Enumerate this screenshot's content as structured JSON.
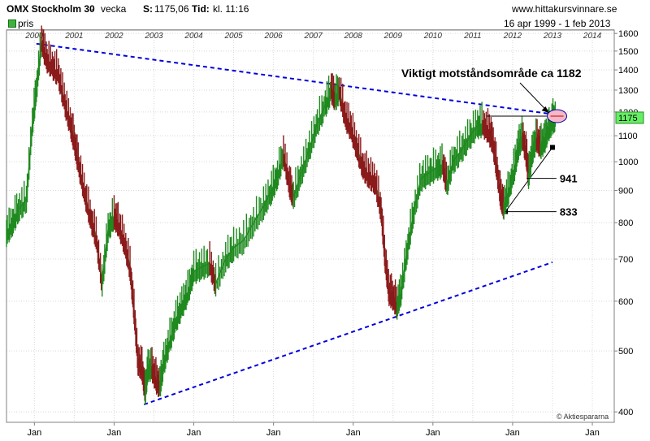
{
  "header": {
    "instrument": "OMX Stockholm 30",
    "separator": "-",
    "period": "vecka",
    "last_label": "S:",
    "last_value": "1175,06",
    "time_label": "Tid:",
    "time_value": "kl. 11:16",
    "site": "www.hittakursvinnare.se"
  },
  "subheader": {
    "legend": "pris",
    "date_range": "16 apr 1999 - 1 feb 2013"
  },
  "copyright": "© Aktiespararna",
  "colors": {
    "up": "#1f8a1f",
    "down": "#8b1a1a",
    "trendline": "#0000dd",
    "highlight": "#f4b8c8",
    "last_badge": "#66ee66"
  },
  "chart_data": {
    "type": "line",
    "scale": "log",
    "ylim": [
      385,
      1620
    ],
    "xlim": [
      1999.3,
      2014.55
    ],
    "yticks": [
      400,
      500,
      600,
      700,
      800,
      900,
      1000,
      1100,
      1200,
      1300,
      1400,
      1500,
      1600
    ],
    "year_labels": [
      "2000",
      "2001",
      "2002",
      "2003",
      "2004",
      "2005",
      "2006",
      "2007",
      "2008",
      "2009",
      "2010",
      "2011",
      "2012",
      "2013",
      "2014"
    ],
    "bottom_labels": [
      "Jan",
      "Jan",
      "Jan",
      "Jan",
      "Jan",
      "Jan",
      "Jan",
      "Jan"
    ],
    "last_value_label": "1175",
    "series": [
      {
        "values": [
          [
            1999.3,
            770
          ],
          [
            1999.45,
            800
          ],
          [
            1999.6,
            840
          ],
          [
            1999.8,
            870
          ],
          [
            1999.95,
            1150
          ],
          [
            2000.05,
            1300
          ],
          [
            2000.18,
            1560
          ],
          [
            2000.3,
            1460
          ],
          [
            2000.45,
            1420
          ],
          [
            2000.6,
            1380
          ],
          [
            2000.75,
            1250
          ],
          [
            2000.9,
            1150
          ],
          [
            2001.0,
            1080
          ],
          [
            2001.1,
            1000
          ],
          [
            2001.25,
            900
          ],
          [
            2001.4,
            820
          ],
          [
            2001.55,
            760
          ],
          [
            2001.7,
            640
          ],
          [
            2001.85,
            780
          ],
          [
            2002.0,
            820
          ],
          [
            2002.1,
            800
          ],
          [
            2002.25,
            750
          ],
          [
            2002.4,
            680
          ],
          [
            2002.5,
            580
          ],
          [
            2002.6,
            480
          ],
          [
            2002.7,
            470
          ],
          [
            2002.78,
            430
          ],
          [
            2002.85,
            470
          ],
          [
            2002.95,
            470
          ],
          [
            2003.05,
            450
          ],
          [
            2003.15,
            440
          ],
          [
            2003.25,
            480
          ],
          [
            2003.4,
            520
          ],
          [
            2003.55,
            560
          ],
          [
            2003.7,
            590
          ],
          [
            2003.85,
            620
          ],
          [
            2004.0,
            670
          ],
          [
            2004.2,
            680
          ],
          [
            2004.4,
            690
          ],
          [
            2004.55,
            640
          ],
          [
            2004.8,
            700
          ],
          [
            2005.0,
            730
          ],
          [
            2005.25,
            750
          ],
          [
            2005.5,
            800
          ],
          [
            2005.75,
            850
          ],
          [
            2005.95,
            900
          ],
          [
            2006.1,
            950
          ],
          [
            2006.25,
            1030
          ],
          [
            2006.4,
            920
          ],
          [
            2006.5,
            880
          ],
          [
            2006.7,
            960
          ],
          [
            2006.9,
            1050
          ],
          [
            2007.1,
            1150
          ],
          [
            2007.3,
            1230
          ],
          [
            2007.45,
            1300
          ],
          [
            2007.55,
            1260
          ],
          [
            2007.65,
            1300
          ],
          [
            2007.8,
            1180
          ],
          [
            2007.95,
            1130
          ],
          [
            2008.1,
            1050
          ],
          [
            2008.25,
            980
          ],
          [
            2008.4,
            950
          ],
          [
            2008.55,
            930
          ],
          [
            2008.7,
            840
          ],
          [
            2008.8,
            700
          ],
          [
            2008.9,
            620
          ],
          [
            2009.0,
            610
          ],
          [
            2009.1,
            590
          ],
          [
            2009.2,
            620
          ],
          [
            2009.35,
            720
          ],
          [
            2009.5,
            820
          ],
          [
            2009.7,
            940
          ],
          [
            2009.9,
            960
          ],
          [
            2010.1,
            980
          ],
          [
            2010.25,
            990
          ],
          [
            2010.35,
            920
          ],
          [
            2010.5,
            1000
          ],
          [
            2010.7,
            1040
          ],
          [
            2010.9,
            1090
          ],
          [
            2011.1,
            1140
          ],
          [
            2011.25,
            1150
          ],
          [
            2011.4,
            1120
          ],
          [
            2011.5,
            1080
          ],
          [
            2011.6,
            980
          ],
          [
            2011.7,
            880
          ],
          [
            2011.78,
            850
          ],
          [
            2011.9,
            900
          ],
          [
            2012.05,
            980
          ],
          [
            2012.15,
            1060
          ],
          [
            2012.25,
            1100
          ],
          [
            2012.35,
            1020
          ],
          [
            2012.4,
            950
          ],
          [
            2012.5,
            1040
          ],
          [
            2012.6,
            1090
          ],
          [
            2012.7,
            1060
          ],
          [
            2012.8,
            1080
          ],
          [
            2012.9,
            1130
          ],
          [
            2013.0,
            1160
          ],
          [
            2013.08,
            1175
          ]
        ]
      }
    ],
    "trendlines": [
      {
        "from": [
          2000.05,
          1541
        ],
        "to": [
          2013.1,
          1188
        ]
      },
      {
        "from": [
          2002.75,
          411
        ],
        "to": [
          2013.0,
          692
        ]
      },
      {
        "from": [
          2011.82,
          833
        ],
        "to": [
          2013.0,
          1054
        ]
      }
    ],
    "support_lines": [
      {
        "value": "941",
        "from": [
          2012.35,
          941
        ],
        "to": [
          2013.1,
          941
        ]
      },
      {
        "value": "833",
        "from": [
          2011.82,
          833
        ],
        "to": [
          2013.1,
          833
        ]
      }
    ],
    "resistance_line": {
      "value": 1182,
      "from": [
        2011.35,
        1182
      ],
      "to": [
        2013.05,
        1182
      ]
    },
    "annotation": {
      "text": "Viktigt motståndsområde ca 1182",
      "target": [
        2012.95,
        1182
      ]
    }
  }
}
